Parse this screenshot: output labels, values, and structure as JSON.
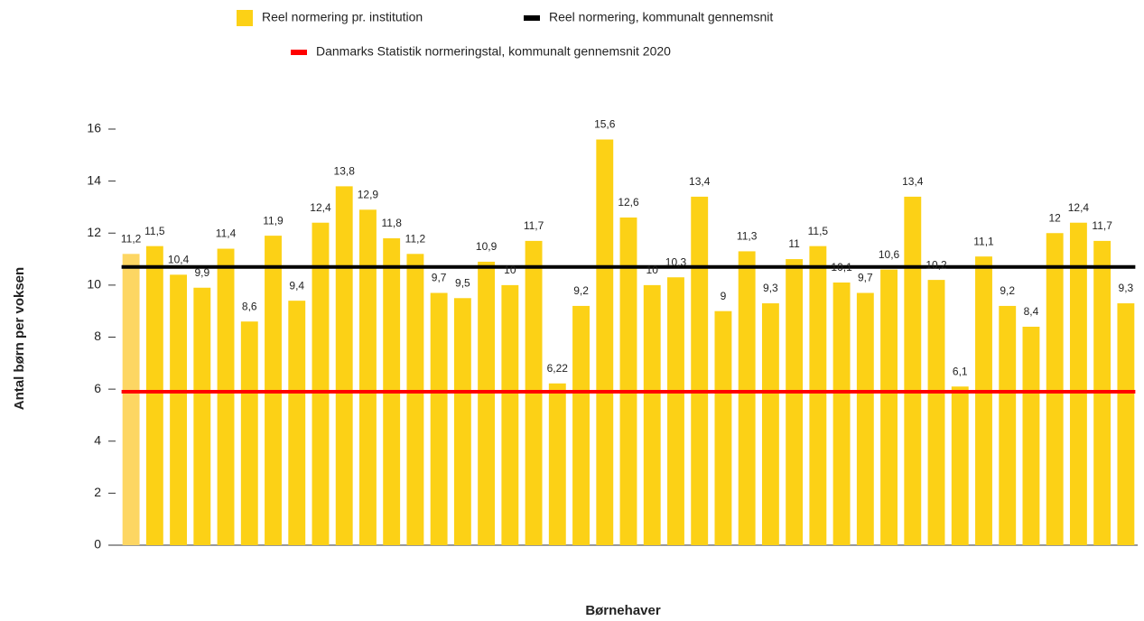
{
  "chart_data": {
    "type": "bar",
    "x_label": "Børnehaver",
    "y_label": "Antal børn per voksen",
    "categories": [
      null,
      null,
      null,
      null,
      null,
      null,
      null,
      null,
      null,
      null,
      null,
      null,
      null,
      null,
      null,
      null,
      null,
      null,
      null,
      null,
      null,
      null,
      null,
      null,
      null,
      null,
      null,
      null,
      null,
      null,
      null,
      null,
      null,
      null,
      null,
      null,
      null,
      null,
      null,
      null,
      null,
      null,
      null
    ],
    "series": [
      {
        "name": "Reel normering pr. institution",
        "type": "bar",
        "color": "#fcd116",
        "colors": [
          "#fdd663",
          "#fcd116",
          "#fcd116",
          "#fcd116",
          "#fcd116",
          "#fcd116",
          "#fcd116",
          "#fcd116",
          "#fcd116",
          "#fcd116",
          "#fcd116",
          "#fcd116",
          "#fcd116",
          "#fcd116",
          "#fcd116",
          "#fcd116",
          "#fcd116",
          "#fcd116",
          "#fcd116",
          "#fcd116",
          "#fcd116",
          "#fcd116",
          "#fcd116",
          "#fcd116",
          "#fcd116",
          "#fcd116",
          "#fcd116",
          "#fcd116",
          "#fcd116",
          "#fcd116",
          "#fcd116",
          "#fcd116",
          "#fcd116",
          "#fcd116",
          "#fcd116",
          "#fcd116",
          "#fcd116",
          "#fcd116",
          "#fcd116",
          "#fcd116",
          "#fcd116",
          "#fcd116",
          "#fcd116"
        ],
        "values": [
          11.2,
          11.5,
          10.4,
          9.9,
          11.4,
          8.6,
          11.9,
          9.4,
          12.4,
          13.8,
          12.9,
          11.8,
          11.2,
          9.7,
          9.5,
          10.9,
          10,
          11.7,
          6.22,
          9.2,
          15.6,
          12.6,
          10,
          10.3,
          13.4,
          9,
          11.3,
          9.3,
          11,
          11.5,
          10.1,
          9.7,
          10.6,
          13.4,
          10.2,
          6.1,
          11.1,
          9.2,
          8.4,
          12,
          12.4,
          11.7,
          9.3
        ],
        "value_labels": [
          "11,2",
          "11,5",
          "10,4",
          "9,9",
          "11,4",
          "8,6",
          "11,9",
          "9,4",
          "12,4",
          "13,8",
          "12,9",
          "11,8",
          "11,2",
          "9,7",
          "9,5",
          "10,9",
          "10",
          "11,7",
          "6,22",
          "9,2",
          "15,6",
          "12,6",
          "10",
          "10,3",
          "13,4",
          "9",
          "11,3",
          "9,3",
          "11",
          "11,5",
          "10,1",
          "9,7",
          "10,6",
          "13,4",
          "10,2",
          "6,1",
          "11,1",
          "9,2",
          "8,4",
          "12",
          "12,4",
          "11,7",
          "9,3"
        ]
      },
      {
        "name": "Reel normering, kommunalt gennemsnit",
        "type": "line",
        "color": "#000000",
        "value": 10.7
      },
      {
        "name": "Danmarks Statistik normeringstal, kommunalt gennemsnit 2020",
        "type": "line",
        "color": "#ff0000",
        "value": 5.9
      }
    ],
    "ylim": [
      0,
      16
    ],
    "yticks": [
      0,
      2,
      4,
      6,
      8,
      10,
      12,
      14,
      16
    ],
    "grid": false
  }
}
